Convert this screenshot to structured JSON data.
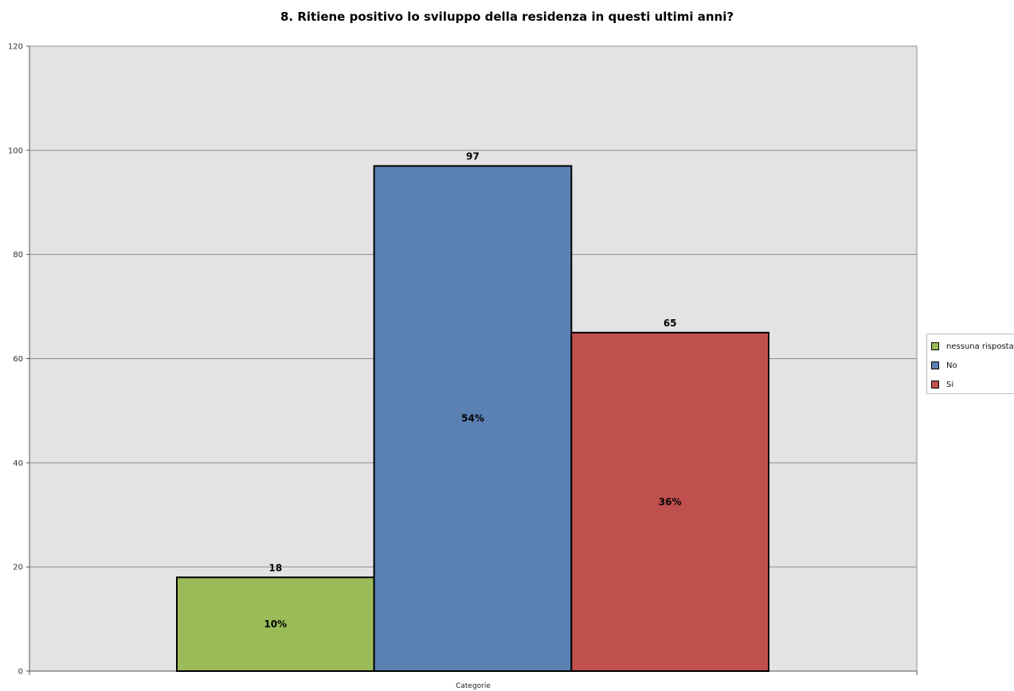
{
  "chart_data": {
    "type": "bar",
    "title": "8. Ritiene positivo lo sviluppo della residenza in questi ultimi anni?",
    "xlabel": "Categorie",
    "ylabel": "",
    "ylim": [
      0,
      120
    ],
    "yticks": [
      0,
      20,
      40,
      60,
      80,
      100,
      120
    ],
    "grid": true,
    "legend_position": "right",
    "series": [
      {
        "name": "nessuna risposta",
        "value": 18,
        "percent_label": "10%",
        "color": "#9bbb59"
      },
      {
        "name": "No",
        "value": 97,
        "percent_label": "54%",
        "color": "#5b81b3"
      },
      {
        "name": "Si",
        "value": 65,
        "percent_label": "36%",
        "color": "#c0504d"
      }
    ]
  }
}
